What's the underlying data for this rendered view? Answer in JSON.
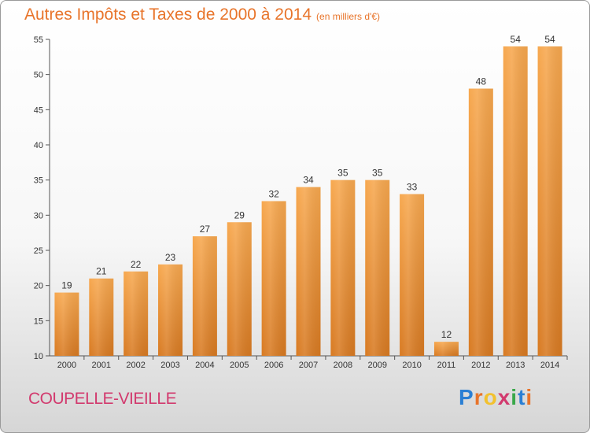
{
  "chart_data": {
    "type": "bar",
    "title": "Autres Impôts et Taxes de 2000 à 2014",
    "subtitle": "(en milliers d'€)",
    "categories": [
      "2000",
      "2001",
      "2002",
      "2003",
      "2004",
      "2005",
      "2006",
      "2007",
      "2008",
      "2009",
      "2010",
      "2011",
      "2012",
      "2013",
      "2014"
    ],
    "values": [
      19,
      21,
      22,
      23,
      27,
      29,
      32,
      34,
      35,
      35,
      33,
      12,
      48,
      54,
      54
    ],
    "ylim": [
      10,
      55
    ],
    "yticks": [
      "10",
      "15",
      "20",
      "25",
      "30",
      "35",
      "40",
      "45",
      "50",
      "55"
    ],
    "grid": false,
    "colors": {
      "bar_light": "#f7a84f",
      "bar_dark": "#d87a22",
      "title": "#e8742a",
      "commune": "#d23a6e"
    }
  },
  "footer": {
    "commune": "COUPELLE-VIEILLE",
    "logo_letters": [
      "P",
      "r",
      "o",
      "x",
      "i",
      "t",
      "i"
    ],
    "logo_colors": [
      "#2a7fd4",
      "#e8742a",
      "#f2c12e",
      "#d23a6e",
      "#3aa84a",
      "#2a7fd4",
      "#e8742a"
    ]
  }
}
